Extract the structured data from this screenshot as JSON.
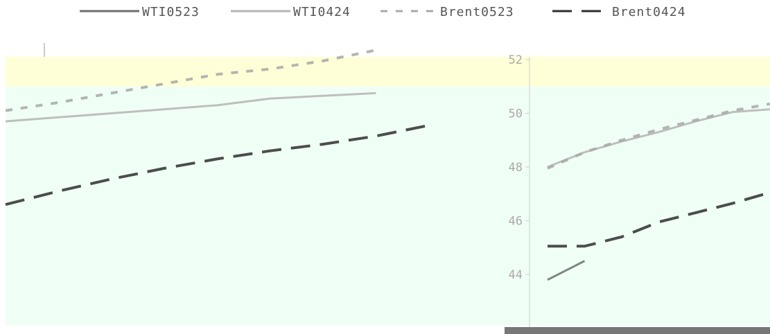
{
  "chart_data": {
    "type": "line",
    "title": "",
    "xlabel": "",
    "ylabel": "",
    "ylim": [
      42,
      53
    ],
    "yticks": [
      44,
      46,
      48,
      50,
      52
    ],
    "legend_position": "top",
    "grid": false,
    "series": [
      {
        "name": "WTI0523",
        "style": "solid",
        "color": "#6e6e6e",
        "values": [
          null,
          null,
          null,
          null,
          null,
          null,
          null,
          null,
          null,
          null,
          43.8,
          44.5,
          null,
          null,
          null,
          null,
          null
        ]
      },
      {
        "name": "WTI0424",
        "style": "solid",
        "color": "#b4b4b4",
        "values": [
          49.7,
          49.85,
          50.0,
          50.15,
          50.3,
          50.55,
          50.65,
          50.75,
          null,
          null,
          48.0,
          48.55,
          48.95,
          49.3,
          49.7,
          50.05,
          50.15
        ]
      },
      {
        "name": "Brent0523",
        "style": "dashed",
        "color": "#a8a8a8",
        "values": [
          50.1,
          50.4,
          50.75,
          51.1,
          51.45,
          51.65,
          51.95,
          52.35,
          null,
          null,
          47.95,
          48.55,
          49.0,
          49.4,
          49.75,
          50.1,
          50.35
        ]
      },
      {
        "name": "Brent0424",
        "style": "long-dashed",
        "color": "#2e2e2e",
        "values": [
          46.6,
          47.1,
          47.55,
          47.95,
          48.3,
          48.6,
          48.85,
          49.15,
          49.55,
          null,
          45.05,
          45.05,
          45.4,
          45.95,
          46.3,
          46.65,
          47.05
        ]
      }
    ],
    "highlight_bands": [
      {
        "from": 51.0,
        "to": 52.3,
        "color": "#ffffd7"
      },
      {
        "from": 42.0,
        "to": 51.0,
        "color": "#f0fff5"
      }
    ]
  }
}
